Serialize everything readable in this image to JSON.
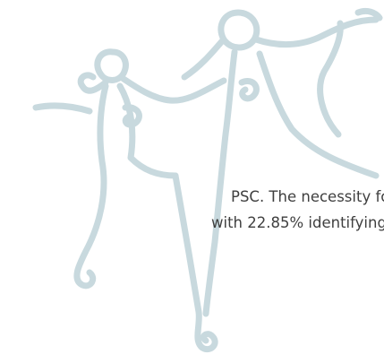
{
  "text_lines": [
    "PSC. The necessity for",
    "with 22.85% identifying"
  ]
}
